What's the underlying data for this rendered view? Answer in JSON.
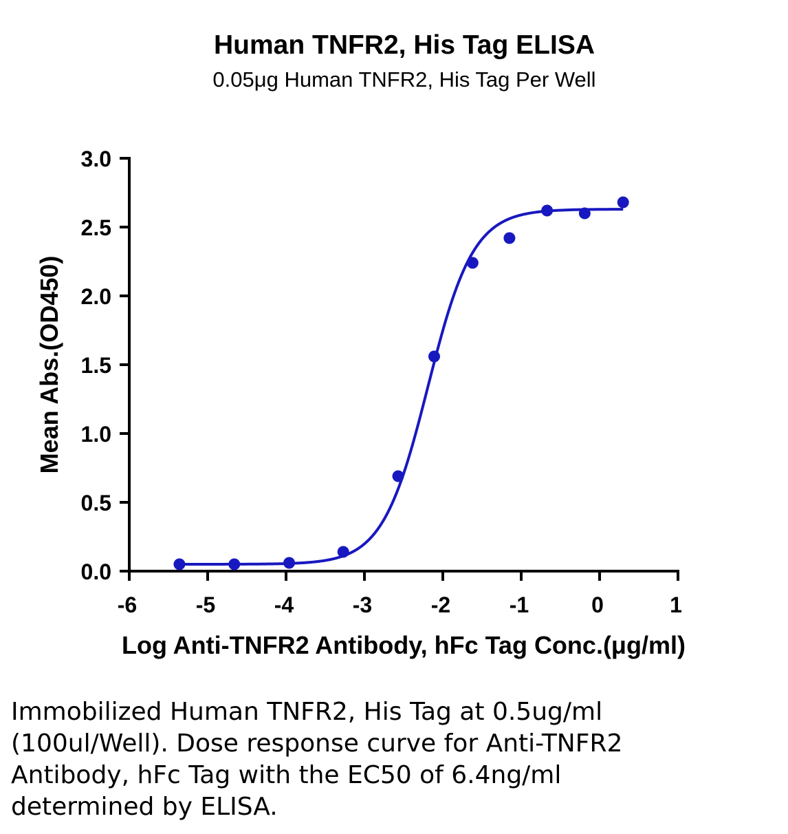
{
  "chart_data": {
    "type": "line",
    "title": "Human TNFR2, His Tag ELISA",
    "subtitle": "0.05μg Human TNFR2, His Tag Per Well",
    "xlabel": "Log Anti-TNFR2 Antibody, hFc Tag Conc.(μg/ml)",
    "ylabel": "Mean Abs.(OD450)",
    "xlim": [
      -6,
      1
    ],
    "ylim": [
      0,
      3.0
    ],
    "xticks": [
      "-6",
      "-5",
      "-4",
      "-3",
      "-2",
      "-1",
      "0",
      "1"
    ],
    "yticks": [
      "0.0",
      "0.5",
      "1.0",
      "1.5",
      "2.0",
      "2.5",
      "3.0"
    ],
    "grid": false,
    "legend": "none",
    "series": [
      {
        "points": [
          {
            "x": -5.36,
            "y": 0.05
          },
          {
            "x": -4.66,
            "y": 0.05
          },
          {
            "x": -3.96,
            "y": 0.06
          },
          {
            "x": -3.27,
            "y": 0.14
          },
          {
            "x": -2.57,
            "y": 0.69
          },
          {
            "x": -2.11,
            "y": 1.56
          },
          {
            "x": -1.62,
            "y": 2.24
          },
          {
            "x": -1.15,
            "y": 2.42
          },
          {
            "x": -0.67,
            "y": 2.62
          },
          {
            "x": -0.19,
            "y": 2.6
          },
          {
            "x": 0.3,
            "y": 2.68
          }
        ],
        "fit": {
          "bottom": 0.05,
          "top": 2.63,
          "log_ec50": -2.19,
          "hill": 1.5,
          "x_range": [
            -5.36,
            0.3
          ]
        },
        "color": "#1818c0"
      }
    ]
  },
  "caption": "Immobilized Human TNFR2, His Tag at 0.5ug/ml (100ul/Well). Dose response curve for Anti-TNFR2 Antibody, hFc Tag with the EC50 of 6.4ng/ml determined by ELISA."
}
